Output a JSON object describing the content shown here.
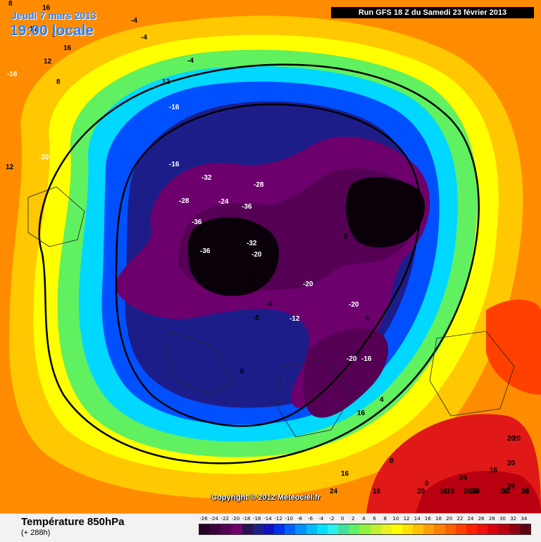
{
  "header": {
    "date": "Jeudi 7 mars 2013",
    "time": "19:00 locale",
    "run": "Run GFS 18 Z du Samedi 23 février 2013"
  },
  "footer": {
    "title": "Température 850hPa",
    "subtitle": "(+ 288h)",
    "copyright": "Copyright © 2012 Meteociel.fr"
  },
  "map": {
    "variable": "Température 850hPa",
    "units": "°C",
    "isotherm_labels": [
      "-16",
      "8",
      "12",
      "16",
      "12",
      "8",
      "16",
      "-4",
      "-4",
      "-4",
      "12",
      "-20",
      "12",
      "8",
      "-16",
      "-16",
      "-28",
      "-36",
      "-36",
      "-32",
      "-24",
      "-36",
      "-28",
      "-32",
      "-20",
      "-20",
      "-20",
      "0",
      "12",
      "-8",
      "-4",
      "-12",
      "0",
      "-20",
      "4",
      "-16",
      "16",
      "4",
      "8",
      "16",
      "20",
      "16",
      "12",
      "20",
      "16",
      "0",
      "16",
      "24",
      "20",
      "20",
      "20",
      "24",
      "20",
      "20",
      "20",
      "24",
      "28",
      "16",
      "20",
      "16"
    ]
  },
  "colors": {
    "scale_labels": [
      "-26",
      "-24",
      "-22",
      "-20",
      "-18",
      "-16",
      "-14",
      "-12",
      "-10",
      "-8",
      "-6",
      "-4",
      "-2",
      "0",
      "2",
      "4",
      "6",
      "8",
      "10",
      "12",
      "14",
      "16",
      "18",
      "20",
      "22",
      "24",
      "26",
      "28",
      "30",
      "32",
      "34"
    ],
    "scale_colors": [
      "#260026",
      "#3d003d",
      "#550055",
      "#6d006d",
      "#2a0f52",
      "#1d1d8a",
      "#1010c0",
      "#0030f0",
      "#0060ff",
      "#0090ff",
      "#00bcff",
      "#00e0ff",
      "#2af0f0",
      "#40e0a0",
      "#60f060",
      "#90f040",
      "#c0f030",
      "#e8f020",
      "#ffff00",
      "#ffe000",
      "#ffc000",
      "#ffa000",
      "#ff8000",
      "#ff6000",
      "#ff4000",
      "#ff2000",
      "#f01010",
      "#d80010",
      "#b80010",
      "#900010",
      "#600010"
    ]
  }
}
